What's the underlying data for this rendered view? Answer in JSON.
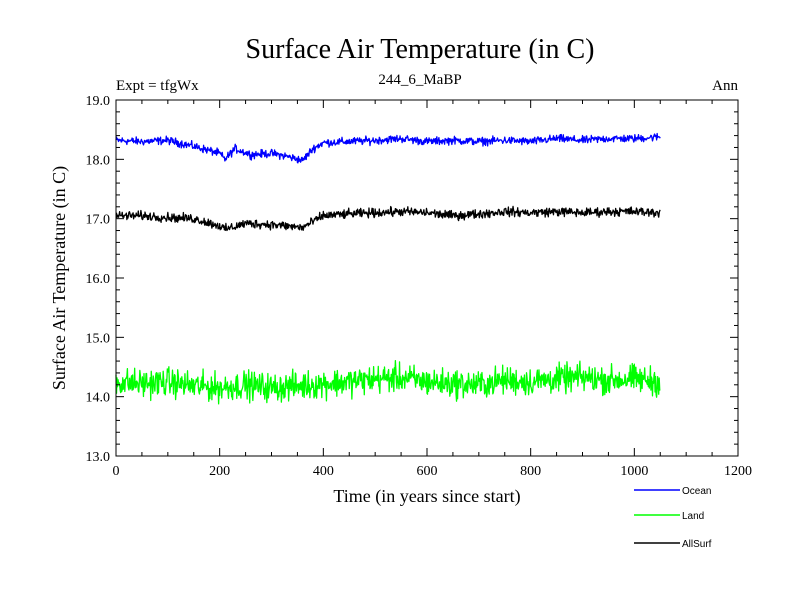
{
  "header": {
    "title": "Surface Air Temperature (in C)",
    "expt": "Expt = tfgWx",
    "subtitle": "244_6_MaBP",
    "season": "Ann"
  },
  "chart_data": {
    "type": "line",
    "title": "Surface Air Temperature (in C)",
    "xlabel": "Time (in years since start)",
    "ylabel": "Surface Air Temperature (in C)",
    "xlim": [
      0,
      1200
    ],
    "ylim": [
      13.0,
      19.0
    ],
    "x_ticks": [
      0,
      200,
      400,
      600,
      800,
      1000,
      1200
    ],
    "x_tick_labels": [
      "0",
      "200",
      "400",
      "600",
      "800",
      "1000",
      "1200"
    ],
    "y_ticks": [
      13.0,
      14.0,
      15.0,
      16.0,
      17.0,
      18.0,
      19.0
    ],
    "y_tick_labels": [
      "13.0",
      "14.0",
      "15.0",
      "16.0",
      "17.0",
      "18.0",
      "19.0"
    ],
    "x_range": [
      0,
      1050
    ],
    "legend_position": "bottom-right",
    "series": [
      {
        "name": "Ocean",
        "color": "#0000ff",
        "x": [
          0,
          50,
          100,
          150,
          200,
          210,
          230,
          260,
          300,
          330,
          360,
          380,
          400,
          450,
          500,
          550,
          600,
          650,
          700,
          750,
          800,
          850,
          900,
          950,
          1000,
          1050
        ],
        "y": [
          18.32,
          18.3,
          18.32,
          18.22,
          18.1,
          18.0,
          18.18,
          18.08,
          18.1,
          18.05,
          17.98,
          18.18,
          18.28,
          18.3,
          18.32,
          18.35,
          18.3,
          18.32,
          18.3,
          18.32,
          18.3,
          18.35,
          18.32,
          18.35,
          18.35,
          18.38
        ],
        "noise": 0.07
      },
      {
        "name": "Land",
        "color": "#00ff00",
        "x": [
          0,
          50,
          100,
          150,
          200,
          250,
          300,
          350,
          400,
          450,
          500,
          550,
          600,
          650,
          700,
          750,
          800,
          850,
          900,
          950,
          1000,
          1050
        ],
        "y": [
          14.25,
          14.22,
          14.25,
          14.18,
          14.15,
          14.2,
          14.15,
          14.18,
          14.22,
          14.25,
          14.3,
          14.32,
          14.25,
          14.22,
          14.2,
          14.28,
          14.25,
          14.3,
          14.32,
          14.28,
          14.3,
          14.25
        ],
        "noise": 0.25
      },
      {
        "name": "AllSurf",
        "color": "#000000",
        "x": [
          0,
          50,
          100,
          150,
          200,
          210,
          250,
          300,
          360,
          400,
          450,
          500,
          550,
          600,
          650,
          700,
          750,
          800,
          850,
          900,
          950,
          1000,
          1050
        ],
        "y": [
          17.05,
          17.05,
          17.02,
          17.0,
          16.88,
          16.82,
          16.92,
          16.9,
          16.85,
          17.05,
          17.08,
          17.1,
          17.12,
          17.1,
          17.05,
          17.08,
          17.12,
          17.1,
          17.12,
          17.1,
          17.12,
          17.12,
          17.1
        ],
        "noise": 0.08
      }
    ]
  }
}
